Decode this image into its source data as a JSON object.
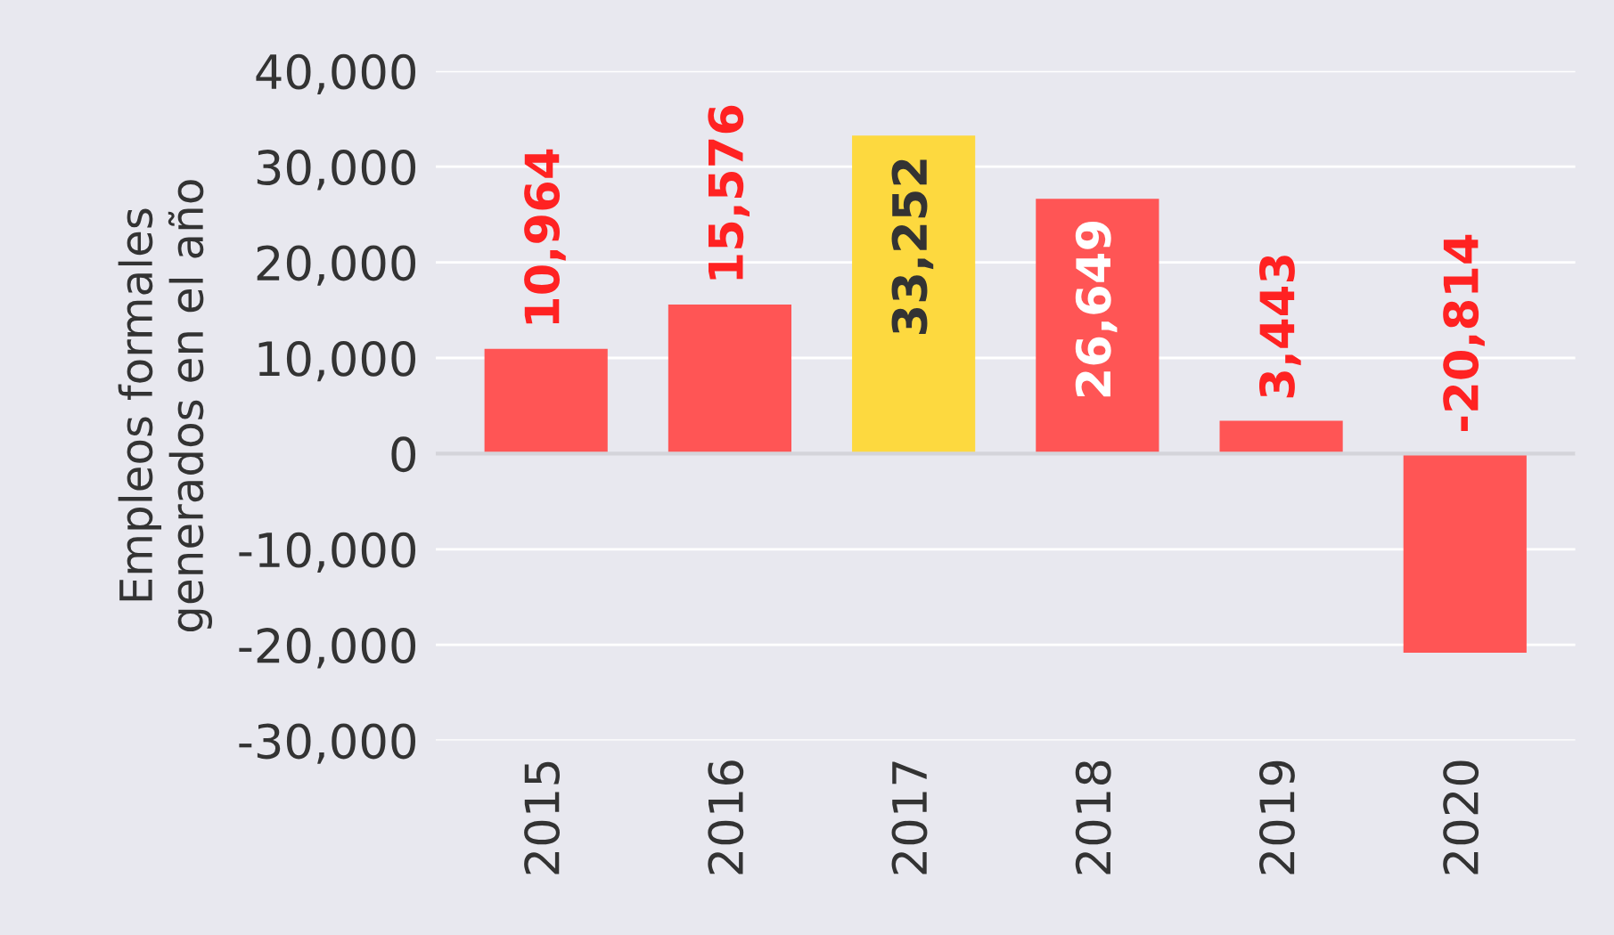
{
  "chart_data": {
    "type": "bar",
    "ylabel": "Empleos formales\ngenerados en el año",
    "categories": [
      "2015",
      "2016",
      "2017",
      "2018",
      "2019",
      "2020"
    ],
    "values": [
      10964,
      15576,
      33252,
      26649,
      3443,
      -20814
    ],
    "colors": [
      "#ff5555",
      "#ff5555",
      "#fdd93f",
      "#ff5555",
      "#ff5555",
      "#ff5555"
    ],
    "value_labels": [
      "10,964",
      "15,576",
      "33,252",
      "26,649",
      "3,443",
      "-20,814"
    ],
    "ylim": [
      -30000,
      40000
    ],
    "yticks": [
      {
        "value": -30000,
        "label": "-30,000"
      },
      {
        "value": -20000,
        "label": "-20,000"
      },
      {
        "value": -10000,
        "label": "-10,000"
      },
      0,
      {
        "value": 10000,
        "label": "10,000"
      },
      {
        "value": 20000,
        "label": "20,000"
      },
      {
        "value": 30000,
        "label": "30,000"
      },
      {
        "value": 40000,
        "label": "40,000"
      }
    ],
    "ref_lines": [
      {
        "axis": "y",
        "value": 0,
        "color": "#d4d4da"
      }
    ],
    "grid": "y"
  }
}
